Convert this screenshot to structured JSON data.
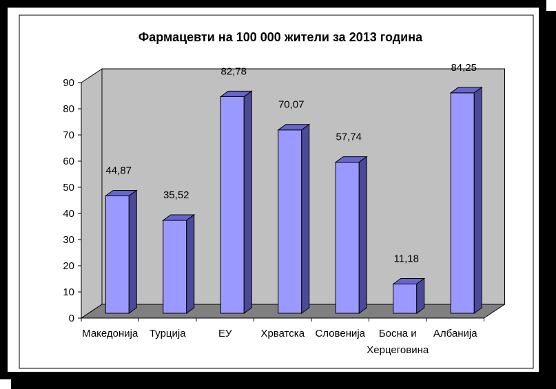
{
  "colors": {
    "bar_front": "#9999ff",
    "bar_top": "#6666cc",
    "bar_side": "#4a4a99",
    "wall": "#c0c0c0",
    "floor": "#808080",
    "frame": "#000000"
  },
  "chart_data": {
    "type": "bar",
    "title": "Фармацевти на 100 000 жители за 2013 година",
    "categories": [
      "Македонија",
      "Турција",
      "ЕУ",
      "Хрватска",
      "Словенија",
      "Босна и Херцеговина",
      "Албанија"
    ],
    "category_lines": [
      [
        "Македонија"
      ],
      [
        "Турција"
      ],
      [
        "ЕУ"
      ],
      [
        "Хрватска"
      ],
      [
        "Словенија"
      ],
      [
        "Босна и",
        "Херцеговина"
      ],
      [
        "Албанија"
      ]
    ],
    "values": [
      44.87,
      35.52,
      82.78,
      70.07,
      57.74,
      11.18,
      84.25
    ],
    "value_labels": [
      "44,87",
      "35,52",
      "82,78",
      "70,07",
      "57,74",
      "11,18",
      "84,25"
    ],
    "ylim": [
      0,
      90
    ],
    "yticks": [
      0,
      10,
      20,
      30,
      40,
      50,
      60,
      70,
      80,
      90
    ],
    "grid": false,
    "legend": "none",
    "style": "3d-column"
  }
}
